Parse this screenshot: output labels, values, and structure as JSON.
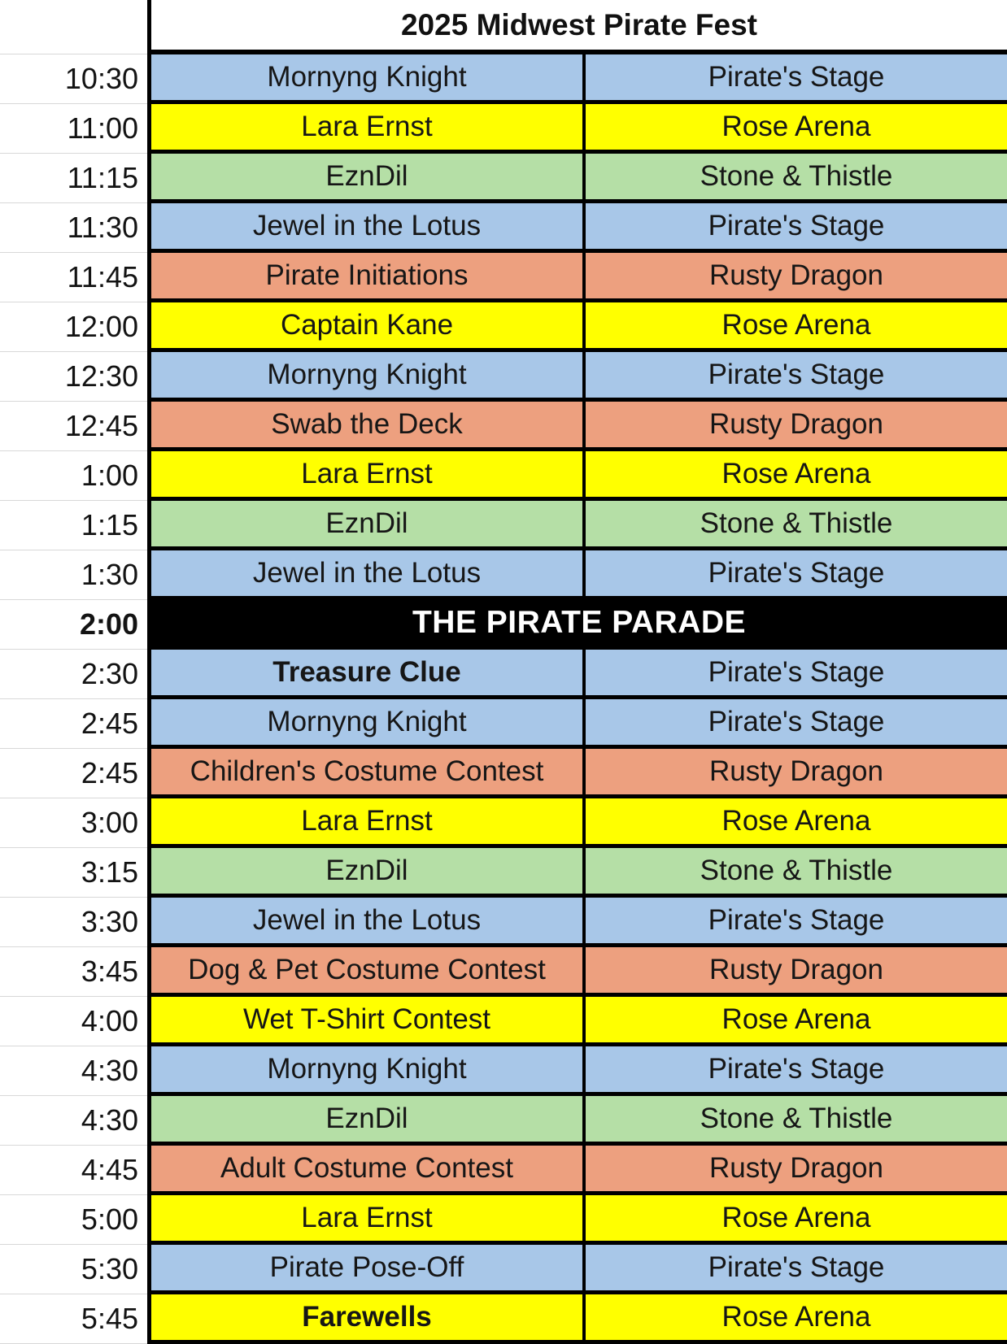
{
  "title": "2025 Midwest Pirate Fest",
  "colors": {
    "blue": "#A8C7E8",
    "yellow": "#FFFF00",
    "green": "#B5DFA6",
    "orange": "#EDA07F",
    "parade_bg": "#000000",
    "parade_text": "#FFFFFF"
  },
  "rows": [
    {
      "time": "10:30",
      "event": "Mornyng Knight",
      "venue": "Pirate's Stage",
      "color": "blue"
    },
    {
      "time": "11:00",
      "event": "Lara Ernst",
      "venue": "Rose Arena",
      "color": "yellow"
    },
    {
      "time": "11:15",
      "event": "EznDil",
      "venue": "Stone & Thistle",
      "color": "green"
    },
    {
      "time": "11:30",
      "event": "Jewel in the Lotus",
      "venue": "Pirate's Stage",
      "color": "blue"
    },
    {
      "time": "11:45",
      "event": "Pirate Initiations",
      "venue": "Rusty Dragon",
      "color": "orange"
    },
    {
      "time": "12:00",
      "event": "Captain Kane",
      "venue": "Rose Arena",
      "color": "yellow"
    },
    {
      "time": "12:30",
      "event": "Mornyng Knight",
      "venue": "Pirate's Stage",
      "color": "blue"
    },
    {
      "time": "12:45",
      "event": "Swab the Deck",
      "venue": "Rusty Dragon",
      "color": "orange"
    },
    {
      "time": "1:00",
      "event": "Lara Ernst",
      "venue": "Rose Arena",
      "color": "yellow"
    },
    {
      "time": "1:15",
      "event": "EznDil",
      "venue": "Stone & Thistle",
      "color": "green"
    },
    {
      "time": "1:30",
      "event": "Jewel in the Lotus",
      "venue": "Pirate's Stage",
      "color": "blue"
    },
    {
      "time": "2:00",
      "event": "THE PIRATE PARADE",
      "venue": "",
      "color": "parade",
      "span": true,
      "bold_time": true,
      "bold_event": true
    },
    {
      "time": "2:30",
      "event": "Treasure Clue",
      "venue": "Pirate's Stage",
      "color": "blue",
      "bold_event": true
    },
    {
      "time": "2:45",
      "event": "Mornyng Knight",
      "venue": "Pirate's Stage",
      "color": "blue"
    },
    {
      "time": "2:45",
      "event": "Children's Costume Contest",
      "venue": "Rusty Dragon",
      "color": "orange"
    },
    {
      "time": "3:00",
      "event": "Lara Ernst",
      "venue": "Rose Arena",
      "color": "yellow"
    },
    {
      "time": "3:15",
      "event": "EznDil",
      "venue": "Stone & Thistle",
      "color": "green"
    },
    {
      "time": "3:30",
      "event": "Jewel in the Lotus",
      "venue": "Pirate's Stage",
      "color": "blue"
    },
    {
      "time": "3:45",
      "event": "Dog & Pet Costume Contest",
      "venue": "Rusty Dragon",
      "color": "orange"
    },
    {
      "time": "4:00",
      "event": "Wet T-Shirt Contest",
      "venue": "Rose Arena",
      "color": "yellow"
    },
    {
      "time": "4:30",
      "event": "Mornyng Knight",
      "venue": "Pirate's Stage",
      "color": "blue"
    },
    {
      "time": "4:30",
      "event": "EznDil",
      "venue": "Stone & Thistle",
      "color": "green"
    },
    {
      "time": "4:45",
      "event": "Adult Costume Contest",
      "venue": "Rusty Dragon",
      "color": "orange"
    },
    {
      "time": "5:00",
      "event": "Lara Ernst",
      "venue": "Rose Arena",
      "color": "yellow"
    },
    {
      "time": "5:30",
      "event": "Pirate Pose-Off",
      "venue": "Pirate's Stage",
      "color": "blue"
    },
    {
      "time": "5:45",
      "event": "Farewells",
      "venue": "Rose Arena",
      "color": "yellow",
      "bold_event": true
    }
  ]
}
